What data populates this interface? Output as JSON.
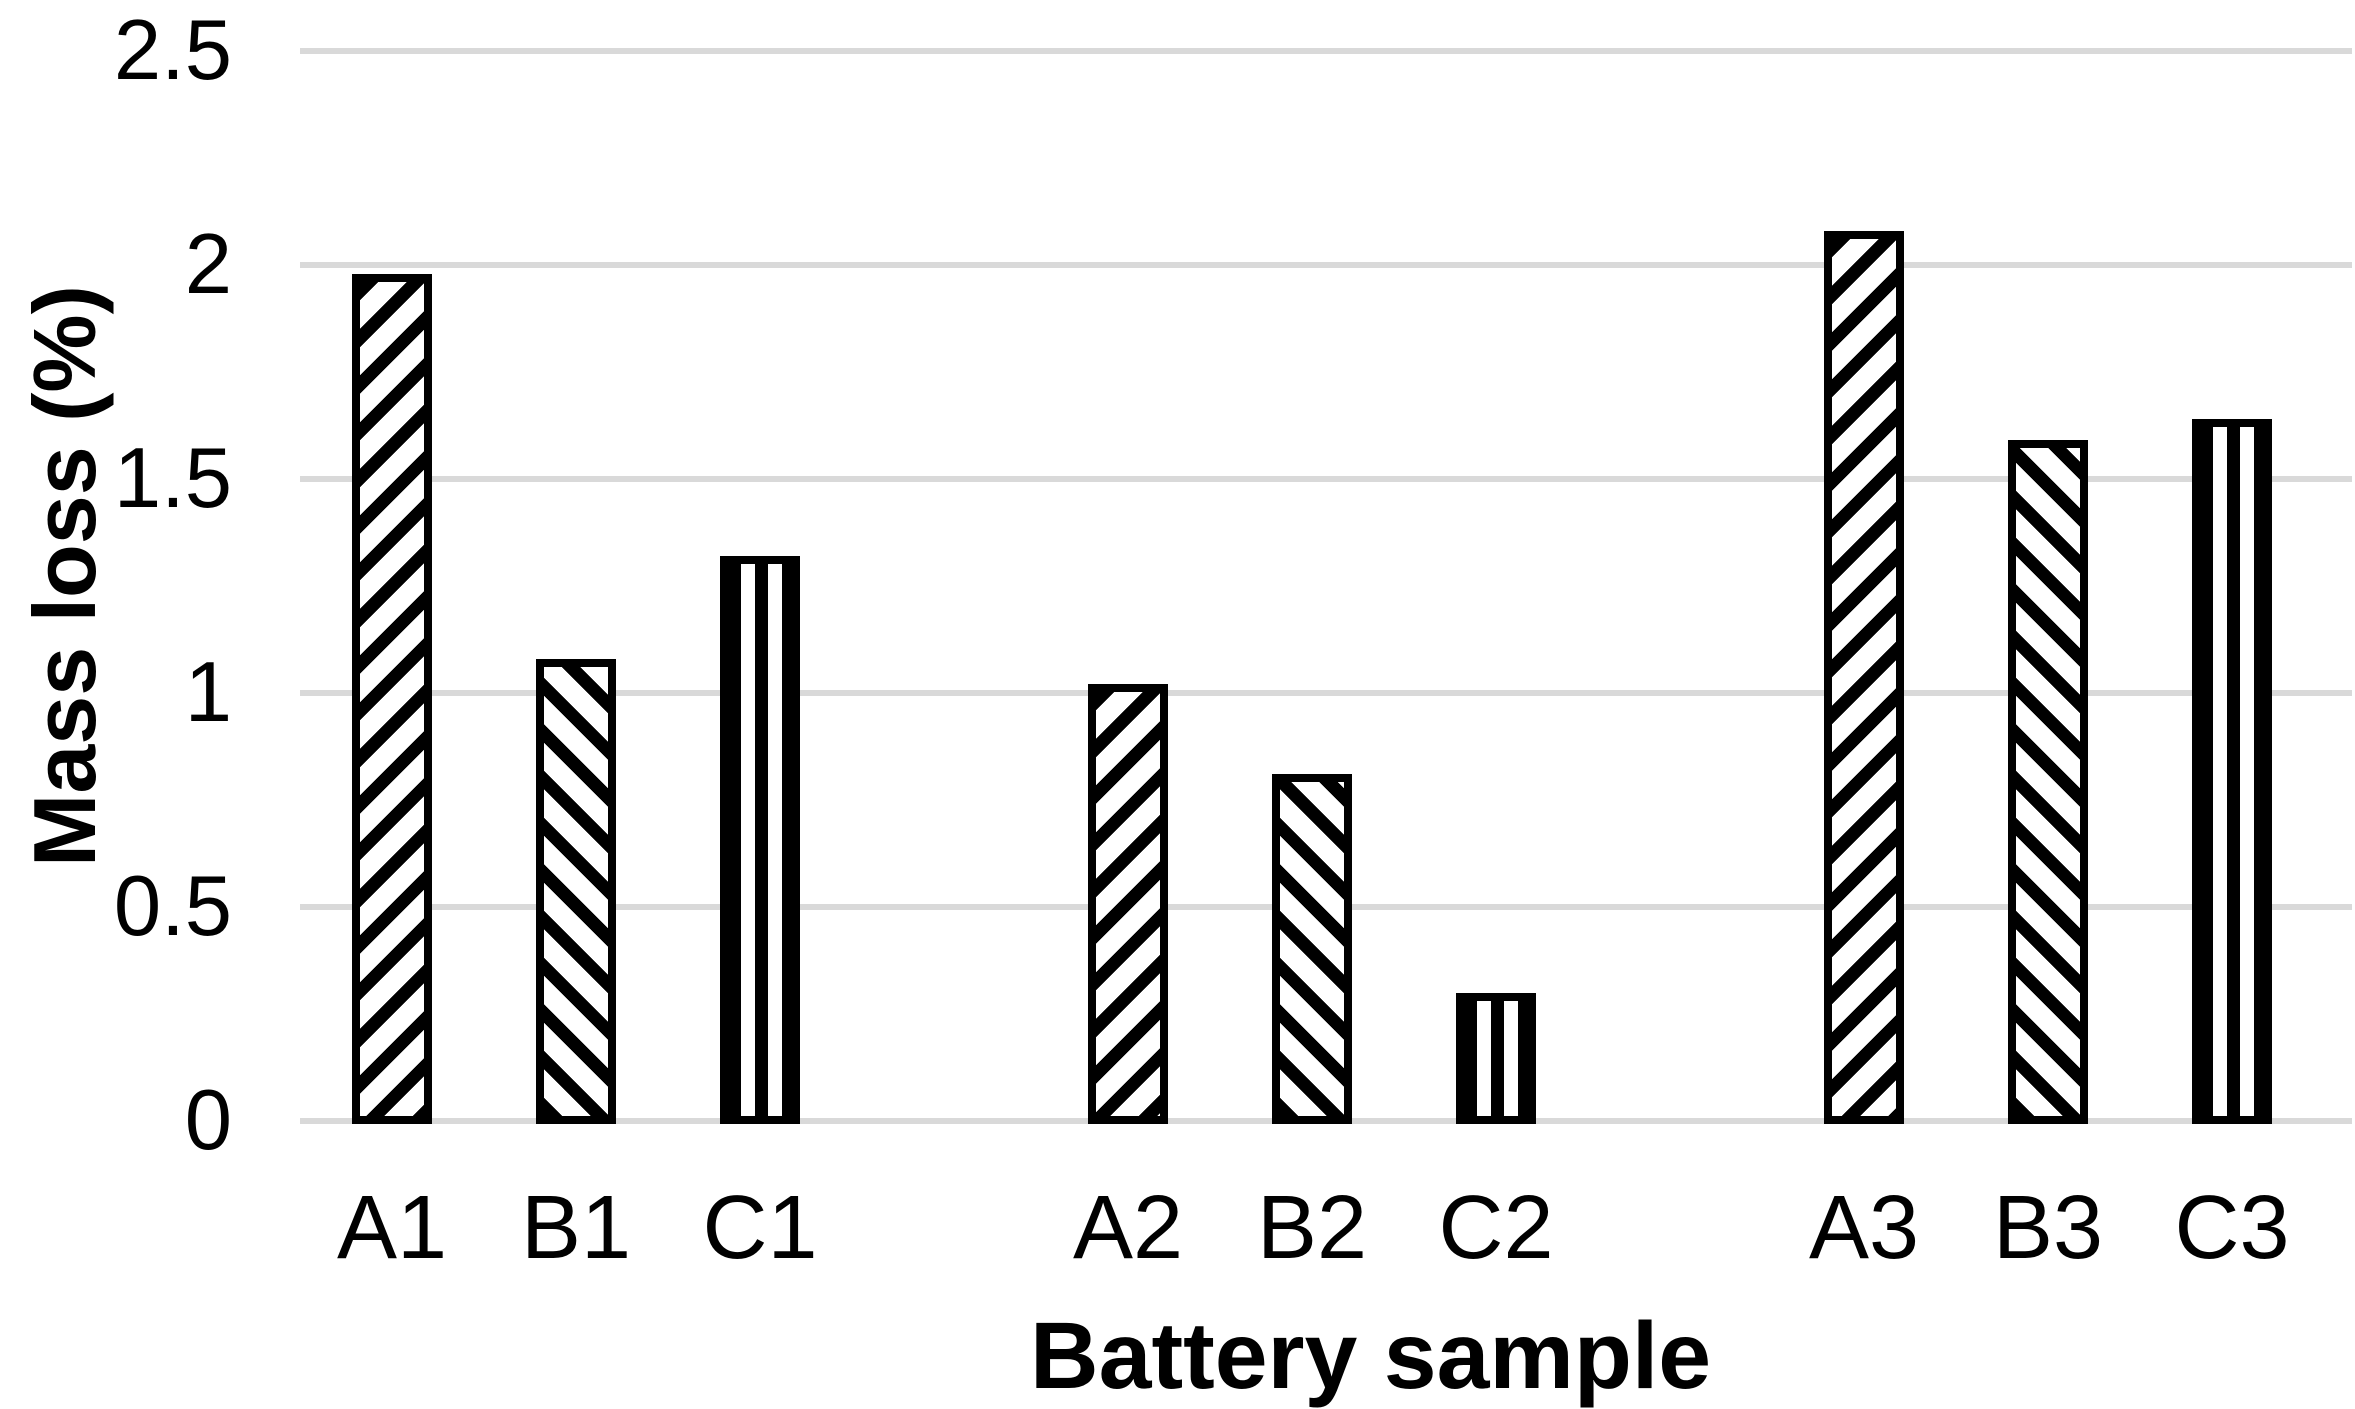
{
  "chart_data": {
    "type": "bar",
    "title": "",
    "categories": [
      "A1",
      "B1",
      "C1",
      "A2",
      "B2",
      "C2",
      "A3",
      "B3",
      "C3"
    ],
    "values": [
      1.98,
      1.08,
      1.32,
      1.02,
      0.81,
      0.3,
      2.08,
      1.59,
      1.64
    ],
    "groups": [
      [
        "A1",
        "B1",
        "C1"
      ],
      [
        "A2",
        "B2",
        "C2"
      ],
      [
        "A3",
        "B3",
        "C3"
      ]
    ],
    "series_patterns": {
      "A": "diagonal-up",
      "B": "diagonal-down",
      "C": "vertical"
    },
    "xlabel": "Battery sample",
    "ylabel": "Mass loss (%)",
    "ylim": [
      0,
      2.5
    ],
    "ytick_step": 0.5,
    "yticks": [
      "0",
      "0.5",
      "1",
      "1.5",
      "2",
      "2.5"
    ],
    "grid": true,
    "legend": "none",
    "gridline_color": "#d9d9d9",
    "bar_outline_color": "#000000",
    "bar_fill_color": "#ffffff",
    "background": "#ffffff"
  }
}
